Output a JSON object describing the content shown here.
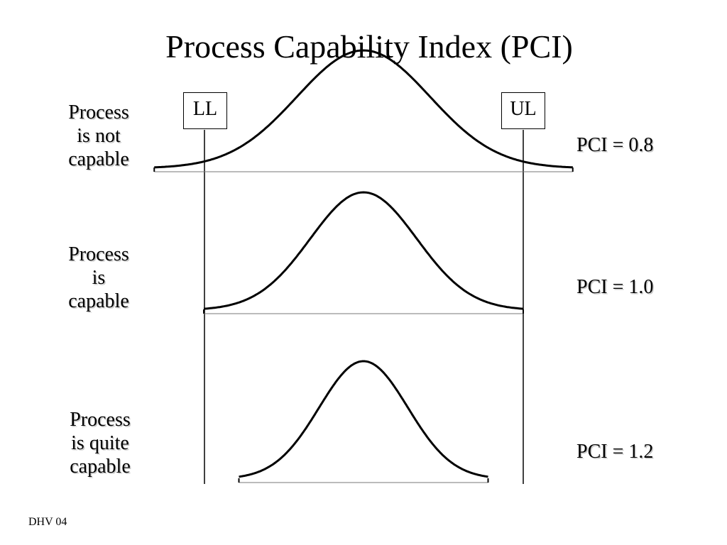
{
  "title": "Process Capability Index (PCI)",
  "footer": "DHV 04",
  "limits": {
    "lower": "LL",
    "upper": "UL"
  },
  "rows": [
    {
      "label_lines": [
        "Process",
        "is not",
        "capable"
      ],
      "pci": "PCI = 0.8",
      "pci_value": 0.8
    },
    {
      "label_lines": [
        "Process",
        "is",
        "capable"
      ],
      "pci": "PCI = 1.0",
      "pci_value": 1.0
    },
    {
      "label_lines": [
        "Process",
        "is quite",
        "capable"
      ],
      "pci": "PCI = 1.2",
      "pci_value": 1.2
    }
  ]
}
